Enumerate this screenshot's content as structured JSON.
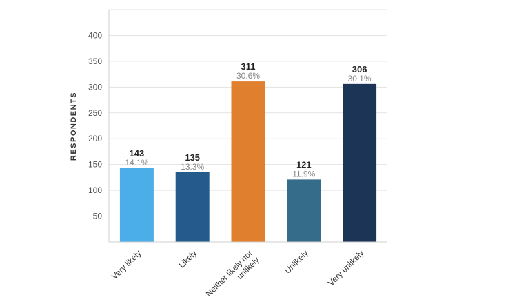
{
  "chart_data": {
    "type": "bar",
    "ylabel": "RESPONDENTS",
    "xlabel": "",
    "ylim": [
      0,
      450
    ],
    "yticks": [
      50,
      100,
      150,
      200,
      250,
      300,
      350,
      400
    ],
    "grid": true,
    "categories": [
      {
        "label": "Very likely",
        "lines": [
          "Very likely"
        ],
        "value": 143,
        "percent": "14.1%",
        "color": "#4BAEE8"
      },
      {
        "label": "Likely",
        "lines": [
          "Likely"
        ],
        "value": 135,
        "percent": "13.3%",
        "color": "#255B8C"
      },
      {
        "label": "Neither likely nor unlikely",
        "lines": [
          "Neither likely nor",
          "unlikely"
        ],
        "value": 311,
        "percent": "30.6%",
        "color": "#E07F2E"
      },
      {
        "label": "Unlikely",
        "lines": [
          "Unlikely"
        ],
        "value": 121,
        "percent": "11.9%",
        "color": "#356C8A"
      },
      {
        "label": "Very unlikely",
        "lines": [
          "Very unlikely"
        ],
        "value": 306,
        "percent": "30.1%",
        "color": "#1C3557"
      }
    ]
  }
}
